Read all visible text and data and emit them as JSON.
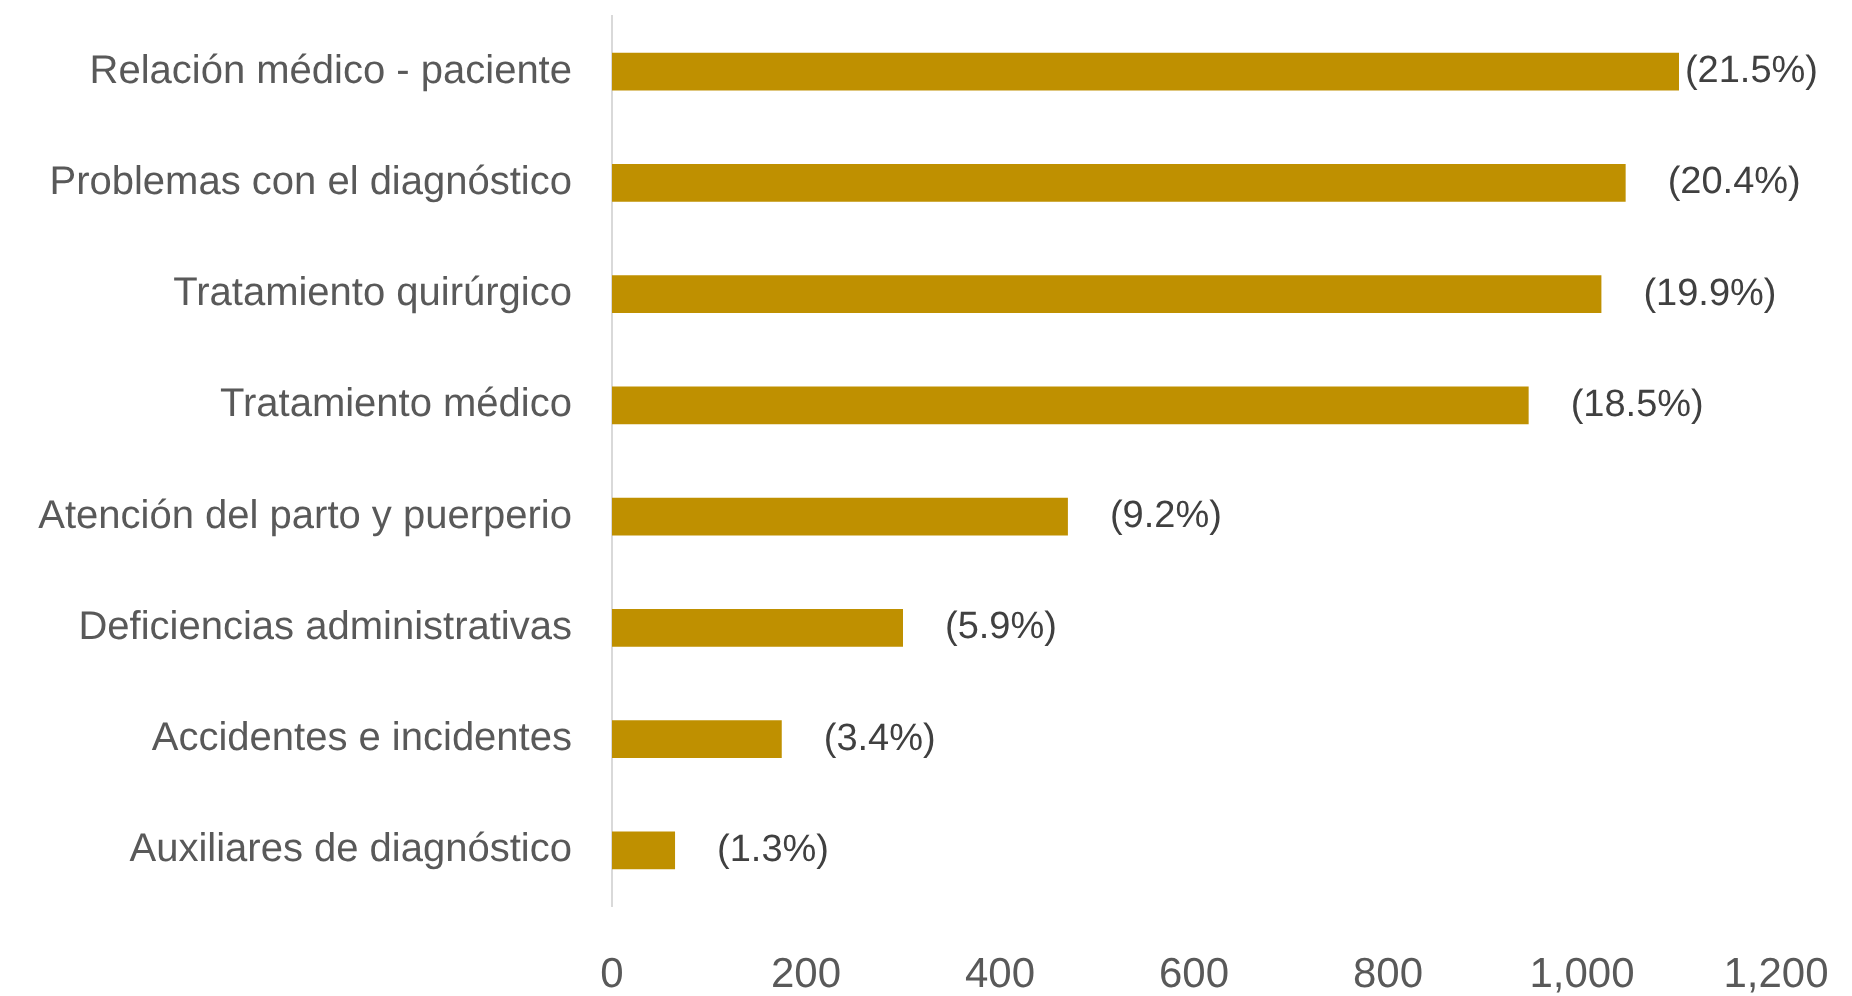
{
  "chart_data": {
    "type": "bar",
    "orientation": "horizontal",
    "categories": [
      "Relación médico - paciente",
      "Problemas con el diagnóstico",
      "Tratamiento quirúrgico",
      "Tratamiento médico",
      "Atención del parto y puerperio",
      "Deficiencias administrativas",
      "Accidentes e incidentes",
      "Auxiliares de diagnóstico"
    ],
    "values": [
      1100,
      1045,
      1020,
      945,
      470,
      300,
      175,
      65
    ],
    "color": "#bf9000",
    "xlim": [
      0,
      1200
    ],
    "xticks": [
      0,
      200,
      400,
      600,
      800,
      {
        "value": 1000,
        "label": "1,000"
      },
      {
        "value": 1200,
        "label": "1,200"
      }
    ],
    "annotations": [
      {
        "text": "(21.5%)",
        "x": 1100,
        "y": "Relación médico - paciente"
      },
      {
        "text": "(20.4%)",
        "x": 1045,
        "y": "Problemas con el diagnóstico"
      },
      {
        "text": "(19.9%)",
        "x": 1020,
        "y": "Tratamiento quirúrgico"
      },
      {
        "text": "(18.5%)",
        "x": 945,
        "y": "Tratamiento médico"
      },
      {
        "text": "(9.2%)",
        "x": 470,
        "y": "Atención del parto y puerperio"
      },
      {
        "text": "(5.9%)",
        "x": 300,
        "y": "Deficiencias administrativas"
      },
      {
        "text": "(3.4%)",
        "x": 175,
        "y": "Accidentes e incidentes"
      },
      {
        "text": "(1.3%)",
        "x": 65,
        "y": "Auxiliares de diagnóstico"
      }
    ]
  }
}
